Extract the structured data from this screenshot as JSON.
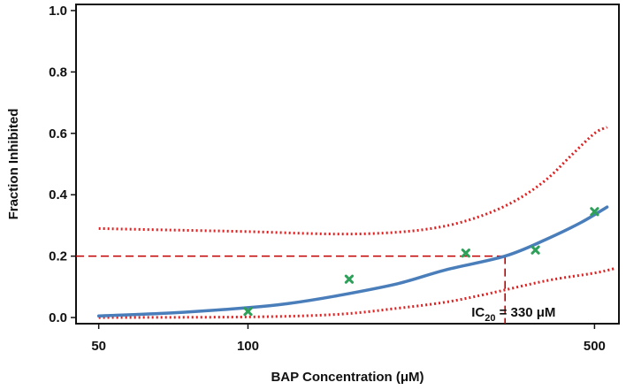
{
  "chart_data": {
    "type": "line",
    "xscale": "log",
    "xlabel": "BAP Concentration (μM)",
    "ylabel": "Fraction Inhibited",
    "xlim": [
      45,
      560
    ],
    "ylim": [
      -0.02,
      1.02
    ],
    "x_ticks": [
      50,
      100,
      500
    ],
    "x_tick_labels": [
      "50",
      "100",
      "500"
    ],
    "y_ticks": [
      0.0,
      0.2,
      0.4,
      0.6,
      0.8,
      1.0
    ],
    "y_tick_labels": [
      "0.0",
      "0.2",
      "0.4",
      "0.6",
      "0.8",
      "1.0"
    ],
    "grid": false,
    "series": [
      {
        "role": "fit",
        "style": "solid",
        "color": "#4a7ebb",
        "x": [
          50,
          70,
          100,
          120,
          150,
          200,
          250,
          330,
          400,
          470,
          530
        ],
        "y": [
          0.005,
          0.015,
          0.032,
          0.045,
          0.07,
          0.11,
          0.155,
          0.2,
          0.255,
          0.31,
          0.36
        ]
      },
      {
        "role": "upper-band",
        "style": "dotted",
        "color": "#e02020",
        "x": [
          50,
          70,
          100,
          150,
          200,
          250,
          300,
          350,
          400,
          450,
          500,
          530
        ],
        "y": [
          0.29,
          0.285,
          0.28,
          0.272,
          0.278,
          0.298,
          0.335,
          0.385,
          0.45,
          0.53,
          0.6,
          0.62
        ]
      },
      {
        "role": "lower-band",
        "style": "dotted",
        "color": "#e02020",
        "x": [
          50,
          100,
          150,
          200,
          250,
          300,
          400,
          500,
          550
        ],
        "y": [
          0.0,
          0.002,
          0.01,
          0.03,
          0.05,
          0.075,
          0.12,
          0.145,
          0.16
        ]
      }
    ],
    "points": {
      "marker": "x",
      "color": "#2ea05a",
      "x": [
        100,
        160,
        275,
        380,
        500
      ],
      "y": [
        0.02,
        0.125,
        0.21,
        0.22,
        0.345
      ]
    },
    "ic20_annotation": {
      "x": 330,
      "y": 0.2,
      "label_main": "IC",
      "label_sub": "20",
      "label_value": " = 330 μM",
      "color": "#c00000"
    }
  }
}
